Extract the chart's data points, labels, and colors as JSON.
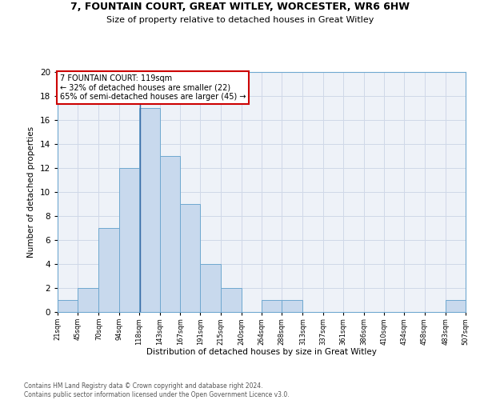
{
  "title1": "7, FOUNTAIN COURT, GREAT WITLEY, WORCESTER, WR6 6HW",
  "title2": "Size of property relative to detached houses in Great Witley",
  "xlabel": "Distribution of detached houses by size in Great Witley",
  "ylabel": "Number of detached properties",
  "footnote1": "Contains HM Land Registry data © Crown copyright and database right 2024.",
  "footnote2": "Contains public sector information licensed under the Open Government Licence v3.0.",
  "annotation_line1": "7 FOUNTAIN COURT: 119sqm",
  "annotation_line2": "← 32% of detached houses are smaller (22)",
  "annotation_line3": "65% of semi-detached houses are larger (45) →",
  "property_size": 119,
  "bar_color": "#c8d9ed",
  "bar_edge_color": "#6fa8d0",
  "vline_color": "#3a6ea8",
  "annotation_box_color": "#ffffff",
  "annotation_box_edge": "#cc0000",
  "grid_color": "#d0d8e8",
  "bg_color": "#eef2f8",
  "bin_edges": [
    21,
    45,
    70,
    94,
    118,
    143,
    167,
    191,
    215,
    240,
    264,
    288,
    313,
    337,
    361,
    386,
    410,
    434,
    458,
    483,
    507
  ],
  "bin_labels": [
    "21sqm",
    "45sqm",
    "70sqm",
    "94sqm",
    "118sqm",
    "143sqm",
    "167sqm",
    "191sqm",
    "215sqm",
    "240sqm",
    "264sqm",
    "288sqm",
    "313sqm",
    "337sqm",
    "361sqm",
    "386sqm",
    "410sqm",
    "434sqm",
    "458sqm",
    "483sqm",
    "507sqm"
  ],
  "counts": [
    1,
    2,
    7,
    12,
    17,
    13,
    9,
    4,
    2,
    0,
    1,
    1,
    0,
    0,
    0,
    0,
    0,
    0,
    0,
    1
  ],
  "ylim": [
    0,
    20
  ],
  "yticks": [
    0,
    2,
    4,
    6,
    8,
    10,
    12,
    14,
    16,
    18,
    20
  ]
}
